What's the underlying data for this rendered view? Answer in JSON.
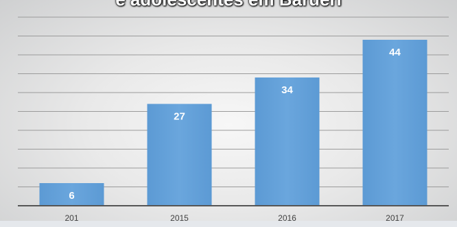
{
  "chart_data": {
    "type": "bar",
    "title": "e adolescentes em Barueri",
    "categories": [
      "201",
      "2015",
      "2016",
      "2017"
    ],
    "values": [
      6,
      27,
      34,
      44
    ],
    "ylim": [
      0,
      50
    ],
    "grid": true,
    "bar_color": "#5b9bd5",
    "data_labels": true
  }
}
